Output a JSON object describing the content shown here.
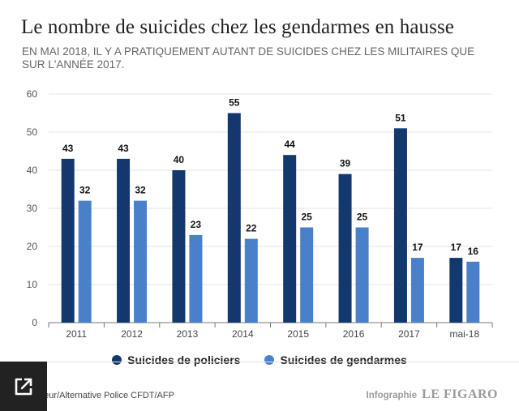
{
  "title": "Le nombre de suicides chez les gendarmes en hausse",
  "subtitle": "EN MAI 2018, IL Y A PRATIQUEMENT AUTANT DE SUICIDES CHEZ LES MILITAIRES QUE SUR L'ANNÉE 2017.",
  "source": "...eur/Alternative Police CFDT/AFP",
  "credit": {
    "label": "Infographie",
    "logo": "LE FIGARO"
  },
  "expand_icon": "expand-icon",
  "colors": {
    "policiers": "#12386e",
    "gendarmes": "#4a80c9"
  },
  "chart_data": {
    "type": "bar",
    "title": "Le nombre de suicides chez les gendarmes en hausse",
    "subtitle": "EN MAI 2018, IL Y A PRATIQUEMENT AUTANT DE SUICIDES CHEZ LES MILITAIRES QUE SUR L'ANNÉE 2017.",
    "categories": [
      "2011",
      "2012",
      "2013",
      "2014",
      "2015",
      "2016",
      "2017",
      "mai-18"
    ],
    "series": [
      {
        "name": "Suicides de policiers",
        "values": [
          43,
          43,
          40,
          55,
          44,
          39,
          51,
          17
        ]
      },
      {
        "name": "Suicides de gendarmes",
        "values": [
          32,
          32,
          23,
          22,
          25,
          25,
          17,
          16
        ]
      }
    ],
    "xlabel": "",
    "ylabel": "",
    "ylim": [
      0,
      60
    ],
    "yticks": [
      "0",
      "10",
      "20",
      "30",
      "40",
      "50",
      "60"
    ],
    "grid": true,
    "legend": "bottom-center"
  }
}
